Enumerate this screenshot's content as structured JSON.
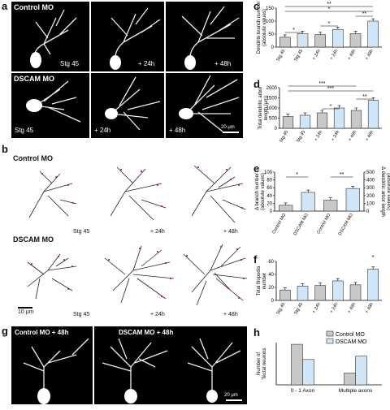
{
  "panels": {
    "a": {
      "letter": "a",
      "row1_title": "Control MO",
      "row2_title": "DSCAM MO",
      "labels": [
        "Stg 45",
        "+ 24h",
        "+ 48h"
      ],
      "scale": "20 μm"
    },
    "b": {
      "letter": "b",
      "row1_title": "Control MO",
      "row2_title": "DSCAM MO",
      "labels": [
        "Stg 45",
        "+ 24h",
        "+ 48h"
      ],
      "scale": "10 μm"
    },
    "g": {
      "letter": "g",
      "left_title": "Control MO + 48h",
      "right_title": "DSCAM MO + 48h",
      "scale": "20 μm"
    }
  },
  "chart_data": [
    {
      "id": "c",
      "letter": "c",
      "type": "bar",
      "ylabel": "Dendrite branch number\n(absolute values)",
      "ylim": [
        0,
        150
      ],
      "yticks": [
        0,
        50,
        100,
        150
      ],
      "categories": [
        "Stg 45",
        "Stg 45",
        "+ 24h",
        "+ 24h",
        "+ 48h",
        "+ 48h"
      ],
      "values": [
        38,
        52,
        48,
        68,
        52,
        100
      ],
      "groups": [
        "Control MO",
        "DSCAM MO",
        "Control MO",
        "DSCAM MO",
        "Control MO",
        "DSCAM MO"
      ],
      "sig": [
        "*",
        "*",
        "*",
        "**",
        "**"
      ]
    },
    {
      "id": "d",
      "letter": "d",
      "type": "bar",
      "ylabel": "Total dendritic arbor\nlength (μm)",
      "ylim": [
        0,
        2000
      ],
      "yticks": [
        0,
        500,
        1000,
        1500,
        2000
      ],
      "categories": [
        "Stg 45",
        "Stg 45",
        "+ 24h",
        "+ 24h",
        "+ 48h",
        "+ 48h"
      ],
      "values": [
        580,
        640,
        760,
        1000,
        880,
        1380
      ],
      "groups": [
        "Control MO",
        "DSCAM MO",
        "Control MO",
        "DSCAM MO",
        "Control MO",
        "DSCAM MO"
      ],
      "sig": [
        "*",
        "**",
        "***",
        "***"
      ]
    },
    {
      "id": "e",
      "letter": "e",
      "type": "bar",
      "ylabel": "Δ branch number\n(absolute values)",
      "ylabel_right": "Δ dendritic arbor length\n(absolute values)",
      "ylim": [
        0,
        100
      ],
      "yticks": [
        0,
        20,
        40,
        60,
        80,
        100
      ],
      "ylim_right": [
        0,
        500
      ],
      "yticks_right": [
        0,
        100,
        200,
        300,
        400,
        500
      ],
      "categories": [
        "Control MO",
        "DSCAM MO",
        "Control MO",
        "DSCAM MO"
      ],
      "values": [
        15,
        48,
        28,
        58
      ],
      "groups": [
        "Control MO",
        "DSCAM MO",
        "Control MO",
        "DSCAM MO"
      ],
      "sig": [
        "*",
        "**"
      ]
    },
    {
      "id": "f",
      "letter": "f",
      "type": "bar",
      "ylabel": "Total filopodia\nnumber",
      "ylim": [
        0,
        60
      ],
      "yticks": [
        0,
        20,
        40,
        60
      ],
      "categories": [
        "Stg 45",
        "Stg 45",
        "+ 24h",
        "+ 24h",
        "+ 48h",
        "+ 48h"
      ],
      "values": [
        16,
        22,
        23,
        30,
        24,
        48
      ],
      "groups": [
        "Control MO",
        "DSCAM MO",
        "Control MO",
        "DSCAM MO",
        "Control MO",
        "DSCAM MO"
      ],
      "sig": [
        "*"
      ]
    },
    {
      "id": "h",
      "letter": "h",
      "type": "bar",
      "ylabel": "Number of\nTectal neurons",
      "ylim": [
        0,
        25
      ],
      "categories": [
        "0 - 1 Axon",
        "Multiple axons"
      ],
      "series": [
        {
          "name": "Control MO",
          "values": [
            24,
            7
          ]
        },
        {
          "name": "DSCAM MO",
          "values": [
            15,
            17
          ]
        }
      ],
      "legend": [
        "Control MO",
        "DSCAM MO"
      ]
    }
  ],
  "colors": {
    "control": "#c8c8c8",
    "dscam": "#cfe6f8",
    "edge": "#333333"
  }
}
